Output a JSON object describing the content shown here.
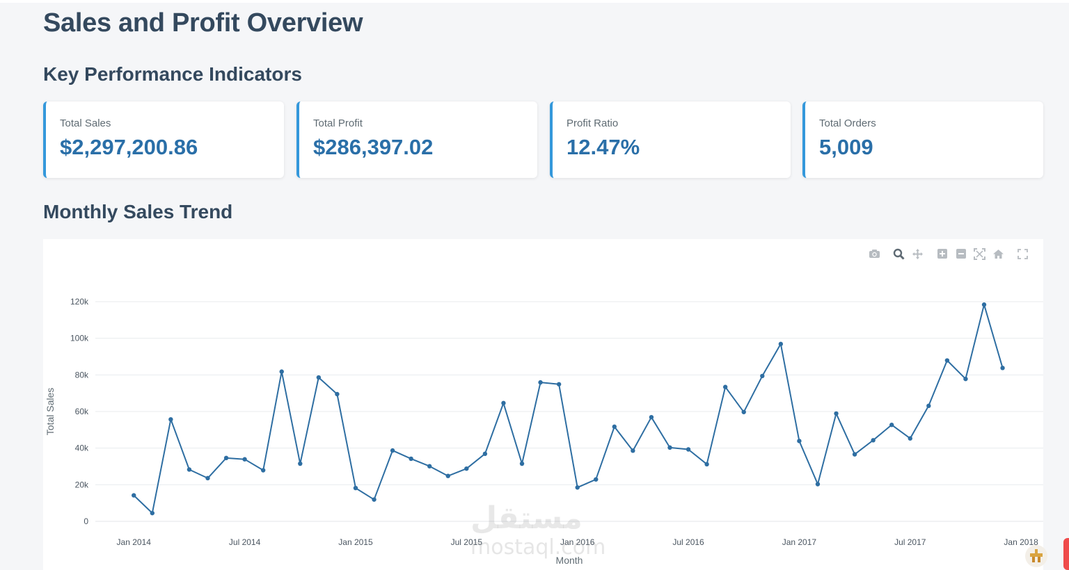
{
  "page": {
    "title": "Sales and Profit Overview"
  },
  "kpi": {
    "section_title": "Key Performance Indicators",
    "cards": [
      {
        "label": "Total Sales",
        "value": "$2,297,200.86"
      },
      {
        "label": "Total Profit",
        "value": "$286,397.02"
      },
      {
        "label": "Profit Ratio",
        "value": "12.47%"
      },
      {
        "label": "Total Orders",
        "value": "5,009"
      }
    ]
  },
  "trend": {
    "section_title": "Monthly Sales Trend",
    "modebar": [
      "camera-icon",
      "zoom-icon",
      "pan-icon",
      "zoom-in-icon",
      "zoom-out-icon",
      "autoscale-icon",
      "reset-axes-icon",
      "fullscreen-icon"
    ]
  },
  "watermark": {
    "arabic": "مستقل",
    "latin": "mostaql.com"
  },
  "colors": {
    "line": "#2e6ea2",
    "accent": "#3498db",
    "value": "#2a6fa8",
    "grid": "#e8ebee"
  },
  "chart_data": {
    "type": "line",
    "title": "",
    "xlabel": "Month",
    "ylabel": "Total Sales",
    "ylim": [
      0,
      120000
    ],
    "y_ticks": [
      0,
      20000,
      40000,
      60000,
      80000,
      100000,
      120000
    ],
    "y_tick_labels": [
      "0",
      "20k",
      "40k",
      "60k",
      "80k",
      "100k",
      "120k"
    ],
    "x_ticks": [
      "2014-01",
      "2014-07",
      "2015-01",
      "2015-07",
      "2016-01",
      "2016-07",
      "2017-01",
      "2017-07",
      "2018-01"
    ],
    "x_tick_labels": [
      "Jan 2014",
      "Jul 2014",
      "Jan 2015",
      "Jul 2015",
      "Jan 2016",
      "Jul 2016",
      "Jan 2017",
      "Jul 2017",
      "Jan 2018"
    ],
    "x_range": [
      "2013-11",
      "2018-02"
    ],
    "grid": true,
    "series": [
      {
        "x": [
          "2014-01",
          "2014-02",
          "2014-03",
          "2014-04",
          "2014-05",
          "2014-06",
          "2014-07",
          "2014-08",
          "2014-09",
          "2014-10",
          "2014-11",
          "2014-12",
          "2015-01",
          "2015-02",
          "2015-03",
          "2015-04",
          "2015-05",
          "2015-06",
          "2015-07",
          "2015-08",
          "2015-09",
          "2015-10",
          "2015-11",
          "2015-12",
          "2016-01",
          "2016-02",
          "2016-03",
          "2016-04",
          "2016-05",
          "2016-06",
          "2016-07",
          "2016-08",
          "2016-09",
          "2016-10",
          "2016-11",
          "2016-12",
          "2017-01",
          "2017-02",
          "2017-03",
          "2017-04",
          "2017-05",
          "2017-06",
          "2017-07",
          "2017-08",
          "2017-09",
          "2017-10",
          "2017-11",
          "2017-12"
        ],
        "values": [
          14200,
          4500,
          55700,
          28300,
          23600,
          34600,
          33900,
          27900,
          81800,
          31500,
          78600,
          69500,
          18200,
          11900,
          38700,
          34200,
          30100,
          24800,
          28800,
          36900,
          64600,
          31500,
          75900,
          74900,
          18500,
          22900,
          51700,
          38600,
          56900,
          40300,
          39300,
          31200,
          73400,
          59700,
          79400,
          96900,
          43900,
          20300,
          58900,
          36600,
          44300,
          52700,
          45300,
          63100,
          87900,
          77800,
          118400,
          83800
        ]
      }
    ]
  }
}
